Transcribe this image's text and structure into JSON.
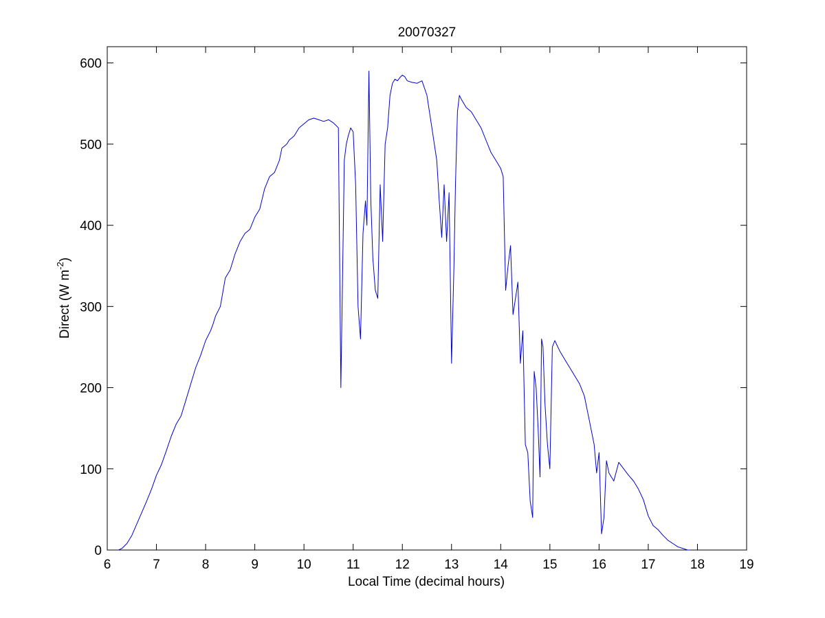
{
  "chart_data": {
    "type": "line",
    "title": "20070327",
    "xlabel": "Local Time (decimal hours)",
    "ylabel": {
      "base": "Direct (W m",
      "sup": "-2",
      "close": ")"
    },
    "xlim": [
      6,
      19
    ],
    "ylim": [
      0,
      620
    ],
    "xticks": [
      6,
      7,
      8,
      9,
      10,
      11,
      12,
      13,
      14,
      15,
      16,
      17,
      18,
      19
    ],
    "yticks": [
      0,
      100,
      200,
      300,
      400,
      500,
      600
    ],
    "grid": false,
    "colors": {
      "series": "#0000cc",
      "axes": "#000000",
      "background": "#ffffff"
    },
    "series": [
      {
        "x": [
          6.23,
          6.3,
          6.4,
          6.5,
          6.6,
          6.7,
          6.8,
          6.9,
          7.0,
          7.1,
          7.2,
          7.3,
          7.4,
          7.5,
          7.6,
          7.7,
          7.8,
          7.9,
          8.0,
          8.1,
          8.15,
          8.2,
          8.3,
          8.4,
          8.5,
          8.6,
          8.7,
          8.8,
          8.9,
          9.0,
          9.1,
          9.2,
          9.3,
          9.4,
          9.5,
          9.55,
          9.65,
          9.7,
          9.8,
          9.9,
          10.0,
          10.1,
          10.2,
          10.3,
          10.4,
          10.5,
          10.6,
          10.7,
          10.75,
          10.8,
          10.82,
          10.86,
          10.9,
          10.95,
          11.0,
          11.05,
          11.1,
          11.15,
          11.2,
          11.25,
          11.28,
          11.32,
          11.36,
          11.4,
          11.45,
          11.5,
          11.55,
          11.6,
          11.65,
          11.7,
          11.75,
          11.8,
          11.85,
          11.9,
          11.95,
          12.0,
          12.05,
          12.1,
          12.2,
          12.3,
          12.4,
          12.5,
          12.6,
          12.7,
          12.75,
          12.8,
          12.85,
          12.9,
          12.95,
          13.0,
          13.05,
          13.08,
          13.12,
          13.16,
          13.2,
          13.25,
          13.3,
          13.4,
          13.5,
          13.6,
          13.7,
          13.8,
          13.9,
          14.0,
          14.05,
          14.1,
          14.15,
          14.2,
          14.25,
          14.3,
          14.35,
          14.4,
          14.45,
          14.5,
          14.55,
          14.6,
          14.65,
          14.68,
          14.72,
          14.76,
          14.8,
          14.83,
          14.86,
          14.9,
          14.95,
          15.0,
          15.05,
          15.1,
          15.2,
          15.3,
          15.4,
          15.5,
          15.6,
          15.7,
          15.8,
          15.9,
          15.95,
          16.0,
          16.05,
          16.1,
          16.15,
          16.2,
          16.3,
          16.4,
          16.5,
          16.6,
          16.7,
          16.8,
          16.9,
          17.0,
          17.1,
          17.2,
          17.3,
          17.4,
          17.5,
          17.6,
          17.7,
          17.8,
          17.85
        ],
        "y": [
          0,
          2,
          8,
          18,
          32,
          46,
          60,
          75,
          92,
          105,
          122,
          140,
          155,
          165,
          185,
          205,
          225,
          240,
          258,
          270,
          278,
          288,
          300,
          335,
          345,
          365,
          380,
          390,
          395,
          410,
          420,
          445,
          460,
          465,
          480,
          495,
          500,
          505,
          510,
          520,
          525,
          530,
          532,
          530,
          528,
          530,
          526,
          520,
          200,
          400,
          480,
          500,
          510,
          520,
          515,
          450,
          300,
          260,
          390,
          430,
          400,
          590,
          430,
          360,
          320,
          310,
          450,
          380,
          500,
          520,
          560,
          575,
          580,
          578,
          582,
          585,
          583,
          578,
          576,
          575,
          578,
          560,
          520,
          480,
          430,
          385,
          450,
          380,
          440,
          230,
          350,
          450,
          540,
          560,
          555,
          550,
          545,
          540,
          530,
          520,
          505,
          490,
          480,
          470,
          460,
          320,
          350,
          375,
          290,
          310,
          330,
          230,
          270,
          130,
          120,
          60,
          40,
          220,
          200,
          150,
          90,
          260,
          250,
          180,
          130,
          100,
          250,
          258,
          245,
          235,
          225,
          215,
          205,
          190,
          160,
          130,
          95,
          120,
          20,
          40,
          110,
          95,
          85,
          108,
          100,
          92,
          85,
          75,
          62,
          42,
          30,
          25,
          18,
          12,
          8,
          4,
          2,
          0,
          0
        ]
      }
    ]
  }
}
